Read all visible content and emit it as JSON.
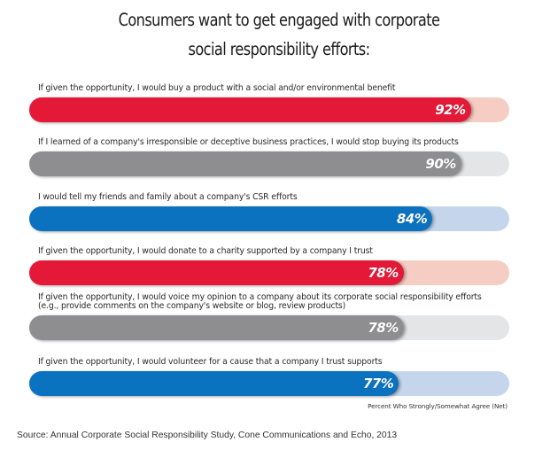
{
  "chart_data": {
    "type": "bar",
    "orientation": "horizontal",
    "title": "Consumers want to get engaged with corporate social responsibility efforts:",
    "title_lines": [
      "Consumers want to get engaged with corporate",
      "social responsibility efforts:"
    ],
    "xlabel": "Percent Who Strongly/Somewhat Agree (Net)",
    "ylabel": "",
    "xlim": [
      0,
      100
    ],
    "grid": false,
    "legend": "none",
    "categories": [
      "If given the opportunity, I would buy a product with a social and/or environmental benefit",
      "If I learned of a company's irresponsible or deceptive business practices, I would stop buying its products",
      "I would tell my friends and family about a company's CSR efforts",
      "If given the opportunity, I would donate to a charity supported by a company I trust",
      "If given the opportunity, I would voice my opinion to a company about its corporate social responsibility efforts (e.g., provide comments on the company's website or blog, review products)",
      "If given the opportunity, I would volunteer for a cause that a company I trust supports"
    ],
    "values": [
      92,
      90,
      84,
      78,
      78,
      77
    ],
    "value_labels": [
      "92%",
      "90%",
      "84%",
      "78%",
      "78%",
      "77%"
    ],
    "bars": [
      {
        "label_lines": [
          "If given the opportunity, I would buy a product with a social and/or environmental benefit"
        ],
        "value": 92,
        "value_label": "92%",
        "fill_color": "#e31937",
        "track_color": "#f6cdc3"
      },
      {
        "label_lines": [
          "If I learned of a company's irresponsible or deceptive business practices, I would stop buying its products"
        ],
        "value": 90,
        "value_label": "90%",
        "fill_color": "#8e8e90",
        "track_color": "#e4e5e7"
      },
      {
        "label_lines": [
          "I would tell my friends and family about a company's CSR efforts"
        ],
        "value": 84,
        "value_label": "84%",
        "fill_color": "#0b72c0",
        "track_color": "#c5d6ec"
      },
      {
        "label_lines": [
          "If given the opportunity, I would donate to a charity supported by a company I trust"
        ],
        "value": 78,
        "value_label": "78%",
        "fill_color": "#e31937",
        "track_color": "#f6cdc3"
      },
      {
        "label_lines": [
          "If given the opportunity, I would voice my opinion to a company about its corporate social responsibility efforts",
          "(e.g., provide comments on the company's website or blog, review products)"
        ],
        "value": 78,
        "value_label": "78%",
        "fill_color": "#8e8e90",
        "track_color": "#e4e5e7"
      },
      {
        "label_lines": [
          "If given the opportunity, I would volunteer for a cause that a company I trust supports"
        ],
        "value": 77,
        "value_label": "77%",
        "fill_color": "#0b72c0",
        "track_color": "#c5d6ec"
      }
    ],
    "source": "Source: Annual Corporate Social Responsibility Study, Cone Communications and Echo, 2013"
  }
}
